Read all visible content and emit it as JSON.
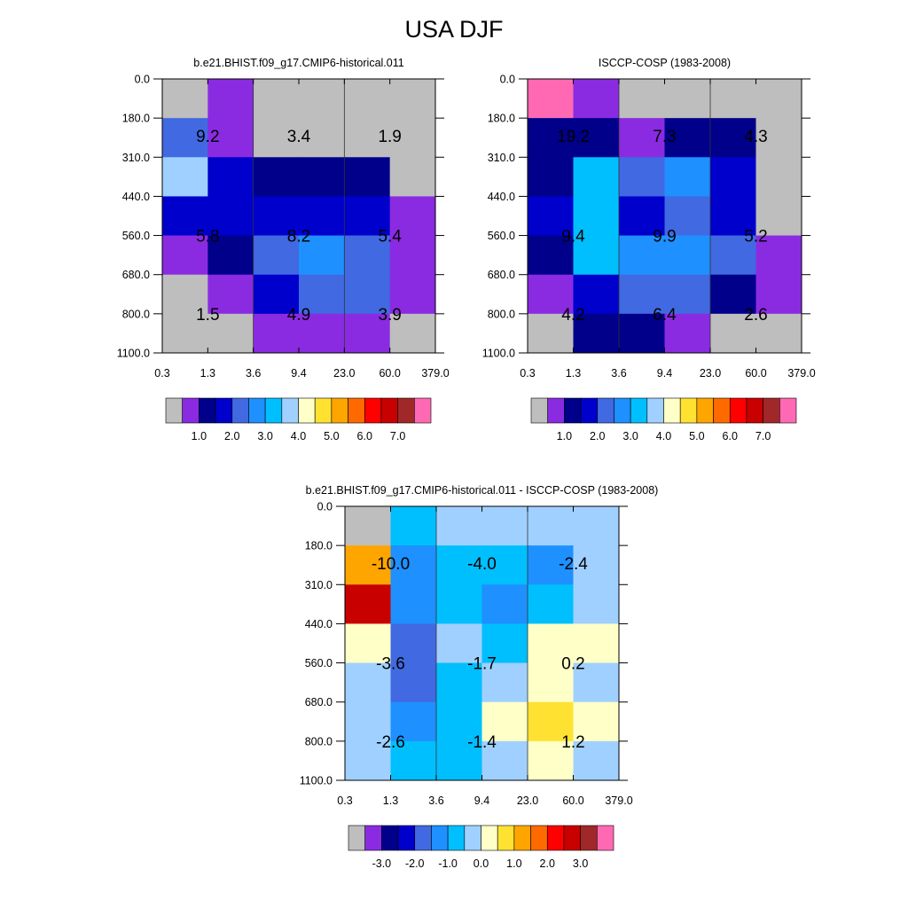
{
  "title": "USA DJF",
  "chart_data": [
    {
      "type": "heatmap",
      "title": "b.e21.BHIST.f09_g17.CMIP6-historical.011",
      "x_ticks": [
        "0.3",
        "1.3",
        "3.6",
        "9.4",
        "23.0",
        "60.0",
        "379.0"
      ],
      "y_ticks": [
        "0.0",
        "180.0",
        "310.0",
        "440.0",
        "560.0",
        "680.0",
        "800.0",
        "1100.0"
      ],
      "cell_colors": [
        [
          "#bebebe",
          "#8a2be2",
          "#bebebe",
          "#bebebe",
          "#bebebe",
          "#bebebe"
        ],
        [
          "#4169e1",
          "#8a2be2",
          "#bebebe",
          "#bebebe",
          "#bebebe",
          "#bebebe"
        ],
        [
          "#a0d0ff",
          "#0000cd",
          "#00008b",
          "#00008b",
          "#00008b",
          "#bebebe"
        ],
        [
          "#0000cd",
          "#0000cd",
          "#0000cd",
          "#0000cd",
          "#0000cd",
          "#8a2be2"
        ],
        [
          "#8a2be2",
          "#00008b",
          "#4169e1",
          "#1e90ff",
          "#4169e1",
          "#8a2be2"
        ],
        [
          "#bebebe",
          "#8a2be2",
          "#0000cd",
          "#4169e1",
          "#4169e1",
          "#8a2be2"
        ],
        [
          "#bebebe",
          "#bebebe",
          "#8a2be2",
          "#8a2be2",
          "#8a2be2",
          "#bebebe"
        ]
      ],
      "block_labels": [
        "9.2",
        "3.4",
        "1.9",
        "5.8",
        "8.2",
        "5.4",
        "1.5",
        "4.9",
        "3.9"
      ],
      "colorbar": {
        "colors": [
          "#bebebe",
          "#8a2be2",
          "#00008b",
          "#0000cd",
          "#4169e1",
          "#1e90ff",
          "#00bfff",
          "#a0d0ff",
          "#ffffc8",
          "#ffe132",
          "#ffa500",
          "#ff6a00",
          "#ff0000",
          "#c80000",
          "#a02828",
          "#ff69b4"
        ],
        "labels": [
          "1.0",
          "2.0",
          "3.0",
          "4.0",
          "5.0",
          "6.0",
          "7.0"
        ],
        "label_start_boundary": 2
      }
    },
    {
      "type": "heatmap",
      "title": "ISCCP-COSP (1983-2008)",
      "x_ticks": [
        "0.3",
        "1.3",
        "3.6",
        "9.4",
        "23.0",
        "60.0",
        "379.0"
      ],
      "y_ticks": [
        "0.0",
        "180.0",
        "310.0",
        "440.0",
        "560.0",
        "680.0",
        "800.0",
        "1100.0"
      ],
      "cell_colors": [
        [
          "#ff69b4",
          "#8a2be2",
          "#bebebe",
          "#bebebe",
          "#bebebe",
          "#bebebe"
        ],
        [
          "#00008b",
          "#00008b",
          "#8a2be2",
          "#00008b",
          "#00008b",
          "#bebebe"
        ],
        [
          "#00008b",
          "#00bfff",
          "#4169e1",
          "#1e90ff",
          "#0000cd",
          "#bebebe"
        ],
        [
          "#0000cd",
          "#00bfff",
          "#0000cd",
          "#4169e1",
          "#0000cd",
          "#bebebe"
        ],
        [
          "#00008b",
          "#00bfff",
          "#1e90ff",
          "#1e90ff",
          "#4169e1",
          "#8a2be2"
        ],
        [
          "#8a2be2",
          "#0000cd",
          "#4169e1",
          "#4169e1",
          "#00008b",
          "#8a2be2"
        ],
        [
          "#bebebe",
          "#00008b",
          "#00008b",
          "#8a2be2",
          "#bebebe",
          "#bebebe"
        ]
      ],
      "block_labels": [
        "19.2",
        "7.3",
        "4.3",
        "9.4",
        "9.9",
        "5.2",
        "4.2",
        "6.4",
        "2.6"
      ],
      "colorbar": {
        "colors": [
          "#bebebe",
          "#8a2be2",
          "#00008b",
          "#0000cd",
          "#4169e1",
          "#1e90ff",
          "#00bfff",
          "#a0d0ff",
          "#ffffc8",
          "#ffe132",
          "#ffa500",
          "#ff6a00",
          "#ff0000",
          "#c80000",
          "#a02828",
          "#ff69b4"
        ],
        "labels": [
          "1.0",
          "2.0",
          "3.0",
          "4.0",
          "5.0",
          "6.0",
          "7.0"
        ],
        "label_start_boundary": 2
      }
    },
    {
      "type": "heatmap",
      "title": "b.e21.BHIST.f09_g17.CMIP6-historical.011 - ISCCP-COSP (1983-2008)",
      "x_ticks": [
        "0.3",
        "1.3",
        "3.6",
        "9.4",
        "23.0",
        "60.0",
        "379.0"
      ],
      "y_ticks": [
        "0.0",
        "180.0",
        "310.0",
        "440.0",
        "560.0",
        "680.0",
        "800.0",
        "1100.0"
      ],
      "cell_colors": [
        [
          "#bebebe",
          "#00bfff",
          "#a0d0ff",
          "#a0d0ff",
          "#a0d0ff",
          "#a0d0ff"
        ],
        [
          "#ffa500",
          "#1e90ff",
          "#00bfff",
          "#00bfff",
          "#1e90ff",
          "#a0d0ff"
        ],
        [
          "#c80000",
          "#1e90ff",
          "#00bfff",
          "#1e90ff",
          "#00bfff",
          "#a0d0ff"
        ],
        [
          "#ffffc8",
          "#4169e1",
          "#a0d0ff",
          "#00bfff",
          "#ffffc8",
          "#ffffc8"
        ],
        [
          "#a0d0ff",
          "#4169e1",
          "#00bfff",
          "#a0d0ff",
          "#ffffc8",
          "#a0d0ff"
        ],
        [
          "#a0d0ff",
          "#1e90ff",
          "#00bfff",
          "#ffffc8",
          "#ffe132",
          "#ffffc8"
        ],
        [
          "#a0d0ff",
          "#00bfff",
          "#00bfff",
          "#a0d0ff",
          "#ffffc8",
          "#a0d0ff"
        ]
      ],
      "block_labels": [
        "-10.0",
        "-4.0",
        "-2.4",
        "-3.6",
        "-1.7",
        "0.2",
        "-2.6",
        "-1.4",
        "1.2"
      ],
      "colorbar": {
        "colors": [
          "#bebebe",
          "#8a2be2",
          "#00008b",
          "#0000cd",
          "#4169e1",
          "#1e90ff",
          "#00bfff",
          "#a0d0ff",
          "#ffffc8",
          "#ffe132",
          "#ffa500",
          "#ff6a00",
          "#ff0000",
          "#c80000",
          "#a02828",
          "#ff69b4"
        ],
        "labels": [
          "-3.0",
          "-2.0",
          "-1.0",
          "0.0",
          "1.0",
          "2.0",
          "3.0"
        ],
        "label_start_boundary": 2
      }
    }
  ]
}
